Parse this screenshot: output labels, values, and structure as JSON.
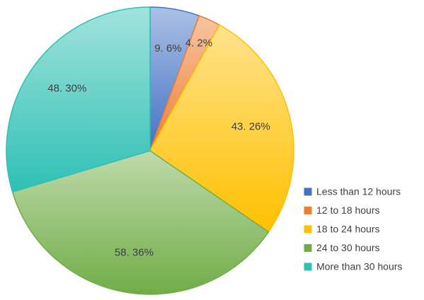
{
  "chart_data": {
    "type": "pie",
    "categories": [
      "Less than 12 hours",
      "12 to 18 hours",
      "18 to 24 hours",
      "24 to 30 hours",
      "More than 30 hours"
    ],
    "values": [
      9,
      4,
      43,
      58,
      48
    ],
    "value_labels": [
      "9. 6%",
      "4. 2%",
      "43. 26%",
      "58. 36%",
      "48. 30%"
    ],
    "colors": [
      "#4472c4",
      "#ed7d31",
      "#ffc000",
      "#70ad47",
      "#2fc0b4"
    ],
    "legend": "right"
  }
}
